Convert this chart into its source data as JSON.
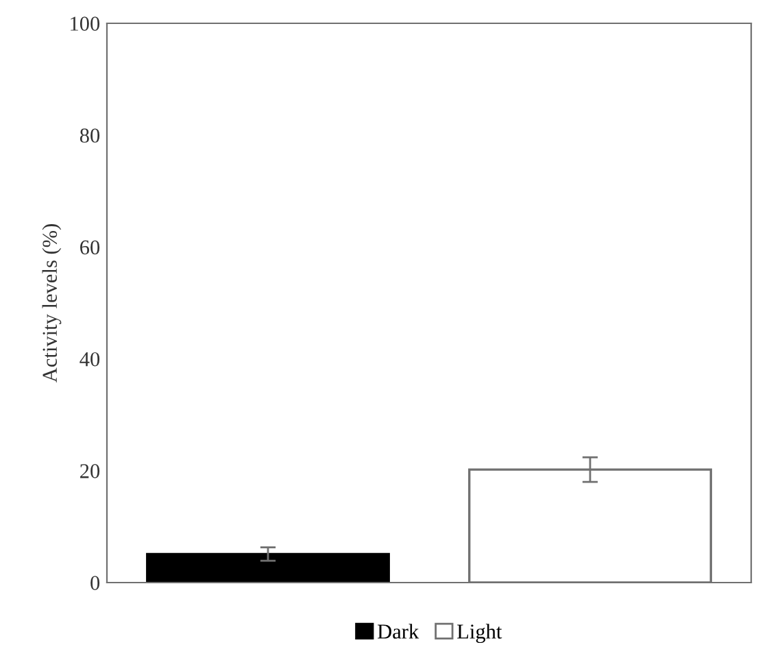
{
  "chart_data": {
    "type": "bar",
    "ylabel": "Activity levels (%)",
    "categories": [
      null
    ],
    "series": [
      {
        "name": "Dark",
        "color": "#000000",
        "values": [
          5.1
        ],
        "errors": [
          1.2
        ]
      },
      {
        "name": "Light",
        "color": "#ffffff",
        "values": [
          20.2
        ],
        "errors": [
          2.2
        ]
      }
    ],
    "ylim": [
      0,
      100
    ],
    "yticks": [
      0,
      20,
      40,
      60,
      80,
      100
    ],
    "grid": false,
    "legend": "bottom"
  }
}
